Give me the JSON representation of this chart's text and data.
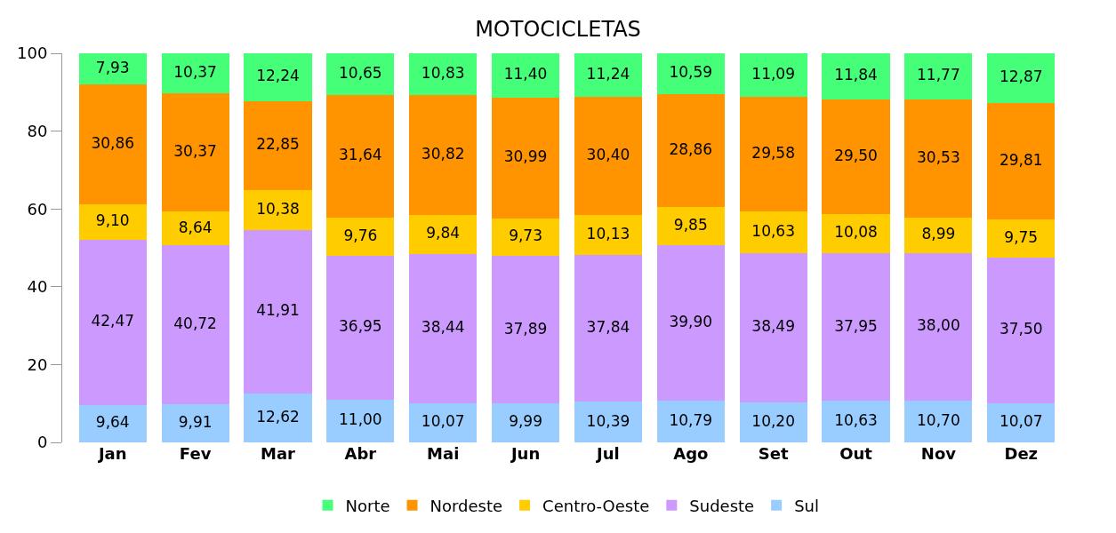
{
  "chart_data": {
    "type": "bar",
    "title": "MOTOCICLETAS",
    "stacked": true,
    "legend": "bottom",
    "categories": [
      "Jan",
      "Fev",
      "Mar",
      "Abr",
      "Mai",
      "Jun",
      "Jul",
      "Ago",
      "Set",
      "Out",
      "Nov",
      "Dez"
    ],
    "ylim": [
      0,
      100
    ],
    "yticks": [
      0,
      20,
      40,
      60,
      80,
      100
    ],
    "series": [
      {
        "name": "Sul",
        "color": "#99ccff",
        "values": [
          9.64,
          9.91,
          12.62,
          11.0,
          10.07,
          9.99,
          10.39,
          10.79,
          10.2,
          10.63,
          10.7,
          10.07
        ],
        "value_labels": [
          "9,64",
          "9,91",
          "12,62",
          "11,00",
          "10,07",
          "9,99",
          "10,39",
          "10,79",
          "10,20",
          "10,63",
          "10,70",
          "10,07"
        ]
      },
      {
        "name": "Sudeste",
        "color": "#cc99ff",
        "values": [
          42.47,
          40.72,
          41.91,
          36.95,
          38.44,
          37.89,
          37.84,
          39.9,
          38.49,
          37.95,
          38.0,
          37.5
        ],
        "value_labels": [
          "42,47",
          "40,72",
          "41,91",
          "36,95",
          "38,44",
          "37,89",
          "37,84",
          "39,90",
          "38,49",
          "37,95",
          "38,00",
          "37,50"
        ]
      },
      {
        "name": "Centro-Oeste",
        "color": "#ffcc00",
        "values": [
          9.1,
          8.64,
          10.38,
          9.76,
          9.84,
          9.73,
          10.13,
          9.85,
          10.63,
          10.08,
          8.99,
          9.75
        ],
        "value_labels": [
          "9,10",
          "8,64",
          "10,38",
          "9,76",
          "9,84",
          "9,73",
          "10,13",
          "9,85",
          "10,63",
          "10,08",
          "8,99",
          "9,75"
        ]
      },
      {
        "name": "Nordeste",
        "color": "#ff9400",
        "values": [
          30.86,
          30.37,
          22.85,
          31.64,
          30.82,
          30.99,
          30.4,
          28.86,
          29.58,
          29.5,
          30.53,
          29.81
        ],
        "value_labels": [
          "30,86",
          "30,37",
          "22,85",
          "31,64",
          "30,82",
          "30,99",
          "30,40",
          "28,86",
          "29,58",
          "29,50",
          "30,53",
          "29,81"
        ]
      },
      {
        "name": "Norte",
        "color": "#44ff77",
        "values": [
          7.93,
          10.37,
          12.24,
          10.65,
          10.83,
          11.4,
          11.24,
          10.59,
          11.09,
          11.84,
          11.77,
          12.87
        ],
        "value_labels": [
          "7,93",
          "10,37",
          "12,24",
          "10,65",
          "10,83",
          "11,40",
          "11,24",
          "10,59",
          "11,09",
          "11,84",
          "11,77",
          "12,87"
        ]
      }
    ]
  }
}
